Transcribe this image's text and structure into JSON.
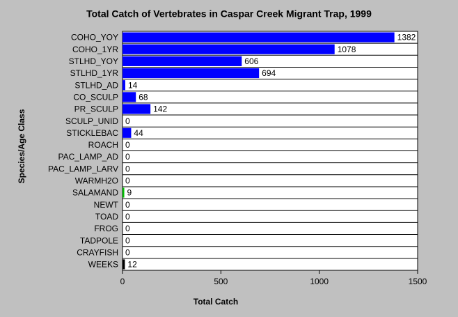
{
  "chart_data": {
    "type": "hbar",
    "title": "Total Catch of Vertebrates in Caspar Creek Migrant Trap, 1999",
    "x_label": "Total Catch",
    "y_label": "Species/Age Class",
    "categories": [
      "COHO_YOY",
      "COHO_1YR",
      "STLHD_YOY",
      "STLHD_1YR",
      "STLHD_AD",
      "CO_SCULP",
      "PR_SCULP",
      "SCULP_UNID",
      "STICKLEBAC",
      "ROACH",
      "PAC_LAMP_AD",
      "PAC_LAMP_LARV",
      "WARMH2O",
      "SALAMAND",
      "NEWT",
      "TOAD",
      "FROG",
      "TADPOLE",
      "CRAYFISH",
      "WEEKS"
    ],
    "values": [
      1382,
      1078,
      606,
      694,
      14,
      68,
      142,
      0,
      44,
      0,
      0,
      0,
      0,
      9,
      0,
      0,
      0,
      0,
      0,
      12
    ],
    "colors": [
      "#0000ff",
      "#0000ff",
      "#0000ff",
      "#0000ff",
      "#0000ff",
      "#0000ff",
      "#0000ff",
      "#0000ff",
      "#0000ff",
      "#0000ff",
      "#0000ff",
      "#0000ff",
      "#0000ff",
      "#00c000",
      "#0000ff",
      "#0000ff",
      "#0000ff",
      "#0000ff",
      "#0000ff",
      "#000000"
    ],
    "xlim": [
      0,
      1500
    ],
    "xticks": [
      0,
      500,
      1000,
      1500
    ],
    "grid": false
  }
}
